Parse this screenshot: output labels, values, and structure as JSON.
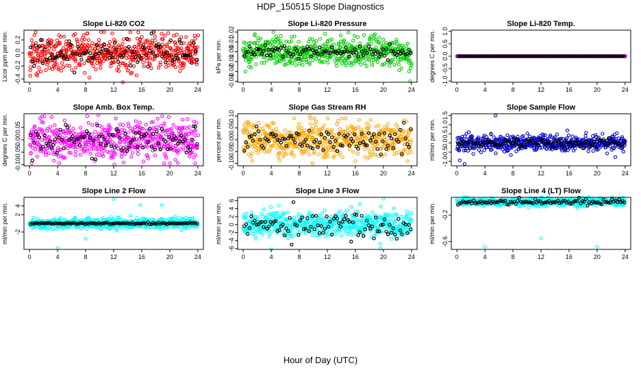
{
  "figure": {
    "title": "HDP_150515  Slope Diagnostics",
    "xlabel": "Hour of Day (UTC)",
    "outline_color": "#000000"
  },
  "chart_data": [
    {
      "type": "scatter",
      "title": "Slope Li-820 CO2",
      "ylabel": "Licor ppm per min.",
      "color": "#ff0000",
      "xlim": [
        -0.8,
        24.8
      ],
      "ylim": [
        -0.45,
        0.35
      ],
      "xticks": [
        0,
        4,
        8,
        12,
        16,
        20,
        24
      ],
      "yticks": [
        -0.4,
        -0.2,
        0.0,
        0.2
      ],
      "ytick_labels": [
        "-0.4",
        "-0.2",
        "0.0",
        "0.2"
      ],
      "spread": 0.14,
      "clip": [
        -0.4,
        0.32
      ],
      "outliers": [
        [
          0.1,
          -0.35
        ],
        [
          13.3,
          -0.45
        ],
        [
          11.8,
          0.3
        ]
      ],
      "black_spread": 0.1
    },
    {
      "type": "scatter",
      "title": "Slope Li-820 Pressure",
      "ylabel": "kPa per min.",
      "color": "#00cc00",
      "xlim": [
        -0.8,
        24.8
      ],
      "ylim": [
        -0.031,
        0.022
      ],
      "xticks": [
        0,
        4,
        8,
        12,
        16,
        20,
        24
      ],
      "yticks": [
        -0.03,
        -0.02,
        -0.01,
        0.0,
        0.01,
        0.02
      ],
      "ytick_labels": [
        "-0.03",
        "-0.02",
        "-0.01",
        "0.00",
        "0.01",
        "0.02"
      ],
      "spread": 0.007,
      "clip": [
        -0.02,
        0.02
      ],
      "outliers": [
        [
          0.3,
          -0.02
        ],
        [
          23.8,
          -0.03
        ],
        [
          4.3,
          0.02
        ]
      ],
      "black_spread": 0.003
    },
    {
      "type": "scatter",
      "title": "Slope Li-820 Temp.",
      "ylabel": "degrees C per min.",
      "color": "#ff00ff",
      "xlim": [
        -0.8,
        24.8
      ],
      "ylim": [
        -1.05,
        1.05
      ],
      "xticks": [
        0,
        4,
        8,
        12,
        16,
        20,
        24
      ],
      "yticks": [
        -1.0,
        -0.5,
        0.0,
        0.5,
        1.0
      ],
      "ytick_labels": [
        "-1.0",
        "-0.5",
        "0.0",
        "0.5",
        "1.0"
      ],
      "spread": 0.0,
      "clip": [
        -0.01,
        0.01
      ],
      "outliers": [],
      "black_spread": 0.0
    },
    {
      "type": "scatter",
      "title": "Slope Amb. Box Temp.",
      "ylabel": "degrees C per min.",
      "color": "#ff00ff",
      "xlim": [
        -0.8,
        24.8
      ],
      "ylim": [
        -0.105,
        0.105
      ],
      "xticks": [
        0,
        4,
        8,
        12,
        16,
        20,
        24
      ],
      "yticks": [
        -0.1,
        -0.05,
        0.0,
        0.05
      ],
      "ytick_labels": [
        "-0.10",
        "-0.05",
        "0.00",
        "0.05"
      ],
      "spread": 0.04,
      "clip": [
        -0.095,
        0.095
      ],
      "outliers": [
        [
          9.8,
          0.1
        ],
        [
          12.1,
          -0.1
        ]
      ],
      "black_spread": 0.03
    },
    {
      "type": "scatter",
      "title": "Slope Gas Stream RH",
      "ylabel": "percent per min.",
      "color": "#ffa500",
      "xlim": [
        -0.8,
        24.8
      ],
      "ylim": [
        -0.11,
        0.11
      ],
      "xticks": [
        0,
        4,
        8,
        12,
        16,
        20,
        24
      ],
      "yticks": [
        -0.1,
        -0.05,
        0.0,
        0.05,
        0.1
      ],
      "ytick_labels": [
        "-0.10",
        "-0.05",
        "0.00",
        "0.05",
        "0.10"
      ],
      "spread": 0.035,
      "clip": [
        -0.09,
        0.09
      ],
      "outliers": [
        [
          9.5,
          0.1
        ],
        [
          9.9,
          -0.1
        ],
        [
          12.2,
          -0.07
        ]
      ],
      "black_spread": 0.025
    },
    {
      "type": "scatter",
      "title": "Slope Sample Flow",
      "ylabel": "ml/min per min.",
      "color": "#0000cc",
      "xlim": [
        -0.8,
        24.8
      ],
      "ylim": [
        -1.25,
        1.6
      ],
      "xticks": [
        0,
        4,
        8,
        12,
        16,
        20,
        24
      ],
      "yticks": [
        -1.0,
        -0.5,
        0.0,
        0.5,
        1.0,
        1.5
      ],
      "ytick_labels": [
        "-1.0",
        "-0.5",
        "0.0",
        "0.5",
        "1.0",
        "1.5"
      ],
      "spread": 0.22,
      "clip": [
        -1.0,
        1.0
      ],
      "outliers": [
        [
          5.5,
          1.5
        ],
        [
          1.1,
          -1.15
        ],
        [
          0.4,
          -0.95
        ]
      ],
      "black_spread": 0.12
    },
    {
      "type": "scatter",
      "title": "Slope Line 2 Flow",
      "ylabel": "ml/min per min.",
      "color": "#00ffff",
      "xlim": [
        -0.8,
        24.8
      ],
      "ylim": [
        -6.0,
        6.0
      ],
      "xticks": [
        0,
        4,
        8,
        12,
        16,
        20,
        24
      ],
      "yticks": [
        -2,
        2,
        4
      ],
      "ytick_labels": [
        "-2",
        "2",
        "4"
      ],
      "spread": 0.6,
      "clip": [
        -2.5,
        2.5
      ],
      "outliers": [
        [
          12.0,
          5.6
        ],
        [
          15.8,
          4.2
        ],
        [
          18.9,
          4.2
        ],
        [
          4.0,
          -5.7
        ],
        [
          8.0,
          -3.5
        ]
      ],
      "black_spread": 0.1
    },
    {
      "type": "scatter",
      "title": "Slope Line 3 Flow",
      "ylabel": "ml/min per min.",
      "color": "#00ffff",
      "xlim": [
        -0.8,
        24.8
      ],
      "ylim": [
        -6.2,
        6.8
      ],
      "xticks": [
        0,
        4,
        8,
        12,
        16,
        20,
        24
      ],
      "yticks": [
        -6,
        -4,
        -2,
        0,
        2,
        4,
        6
      ],
      "ytick_labels": [
        "-6",
        "-4",
        "-2",
        "0",
        "2",
        "4",
        "6"
      ],
      "spread": 1.6,
      "clip": [
        -5.5,
        6.3
      ],
      "outliers": [
        [
          4.0,
          -6.2
        ],
        [
          20.0,
          6.5
        ],
        [
          19.6,
          -6.0
        ]
      ],
      "black_spread": 1.8
    },
    {
      "type": "scatter",
      "title": "Slope Line 4 (LT) Flow",
      "ylabel": "ml/min per min.",
      "color": "#00ffff",
      "xlim": [
        -0.8,
        24.8
      ],
      "ylim": [
        -0.72,
        0.07
      ],
      "xticks": [
        0,
        4,
        8,
        12,
        16,
        20,
        24
      ],
      "yticks": [
        -0.6,
        -0.2
      ],
      "ytick_labels": [
        "-0.6",
        "-0.2"
      ],
      "spread": 0.03,
      "clip": [
        -0.1,
        0.07
      ],
      "outliers": [
        [
          4.0,
          -0.68
        ],
        [
          12.0,
          -0.55
        ],
        [
          20.0,
          -0.68
        ]
      ],
      "black_spread": 0.02
    }
  ]
}
